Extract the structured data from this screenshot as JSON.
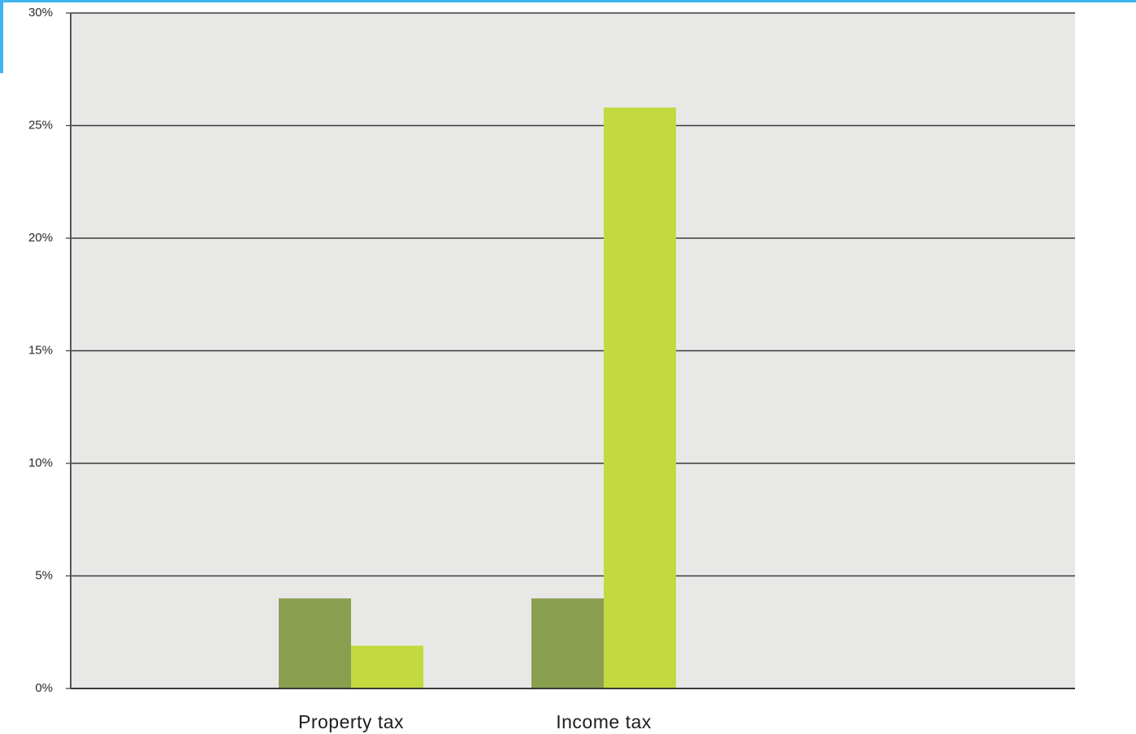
{
  "colors": {
    "frame_accent": "#3fb4ee",
    "plot_background": "#e8e9e7",
    "gridline": "#3a3a3a",
    "axis": "#555555"
  },
  "chart_data": {
    "type": "bar",
    "title": "",
    "xlabel": "",
    "ylabel": "",
    "categories": [
      "Property tax",
      "Income tax"
    ],
    "series": [
      {
        "color": "#8a9e50",
        "values": [
          4,
          4
        ]
      },
      {
        "color": "#c2d940",
        "values": [
          1.9,
          25.8
        ]
      }
    ],
    "ylim": [
      0,
      30
    ],
    "yticks": [
      0,
      5,
      10,
      15,
      20,
      25,
      30
    ],
    "ytick_labels": [
      "0%",
      "5%",
      "10%",
      "15%",
      "20%",
      "25%",
      "30%"
    ],
    "grid": true,
    "legend": "none"
  }
}
